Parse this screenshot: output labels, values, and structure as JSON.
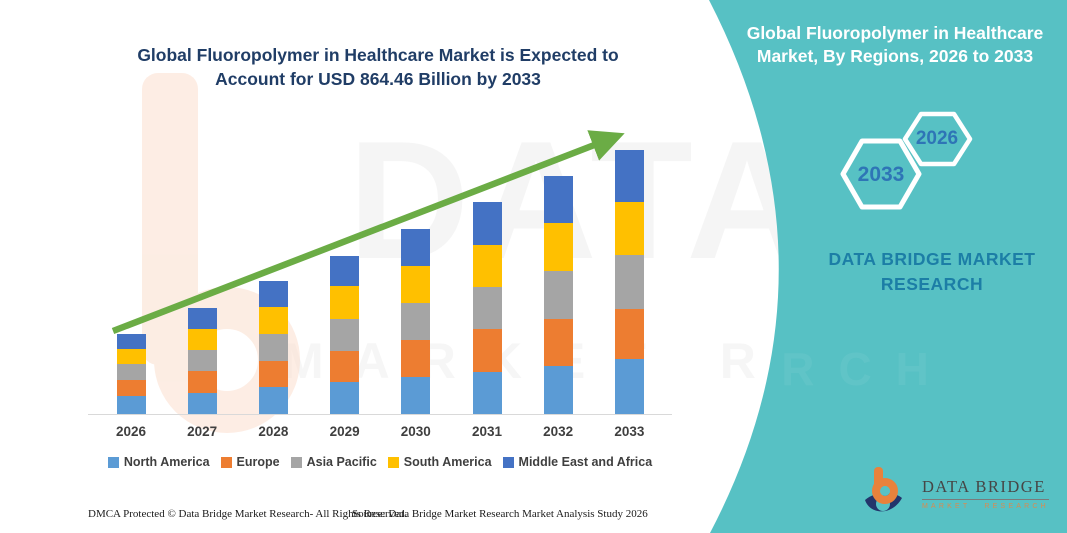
{
  "colors": {
    "teal_panel": "#57c1c4",
    "title_navy": "#203d66",
    "arrow_green": "#6bac45",
    "axis_line": "#d9d9d9",
    "label_gray": "#3f3f3f",
    "hex_year_blue": "#2e75b6",
    "brand_blue": "#1c7ea6",
    "logo_orange": "#e8823c",
    "logo_navy": "#23356b"
  },
  "left_panel": {
    "title_lines": [
      "Global Fluoropolymer in Healthcare Market is Expected to",
      "Account for USD 864.46 Billion by 2033"
    ]
  },
  "right_panel": {
    "title_lines": [
      "Global Fluoropolymer in Healthcare",
      "Market, By Regions, 2026 to 2033"
    ],
    "hexagons": {
      "large": "2033",
      "small": "2026"
    },
    "brand_text": "DATA BRIDGE MARKET RESEARCH"
  },
  "chart_data": {
    "type": "bar",
    "stacked": true,
    "title": "Global Fluoropolymer in Healthcare Market is Expected to Account for USD 864.46 Billion by 2033",
    "unit": "USD Billion",
    "categories": [
      "2026",
      "2027",
      "2028",
      "2029",
      "2030",
      "2031",
      "2032",
      "2033"
    ],
    "series": [
      {
        "name": "North America",
        "color": "#5b9bd5",
        "values": [
          58,
          70,
          88,
          106,
          122,
          139,
          156,
          181
        ]
      },
      {
        "name": "Europe",
        "color": "#ed7d31",
        "values": [
          52,
          70,
          87,
          99,
          121,
          139,
          156,
          164
        ]
      },
      {
        "name": "Asia Pacific",
        "color": "#a5a5a5",
        "values": [
          53,
          70,
          87,
          105,
          121,
          139,
          156,
          175
        ]
      },
      {
        "name": "South America",
        "color": "#ffc000",
        "values": [
          49,
          69,
          87,
          109,
          121,
          138,
          157,
          175
        ]
      },
      {
        "name": "Middle East and Africa",
        "color": "#4472c4",
        "values": [
          51,
          69,
          87,
          100,
          122,
          138,
          156,
          169
        ]
      }
    ],
    "totals": [
      263,
      348,
      436,
      519,
      607,
      693,
      781,
      864.46
    ],
    "highlight_value": "USD 864.46 Billion by 2033",
    "xlabel": "",
    "ylabel": "",
    "ylim": [
      0,
      900
    ],
    "grid": false,
    "legend_position": "bottom",
    "trend_arrow": true
  },
  "watermark": {
    "title": "DATA BRIDGE",
    "subtitle": "MARKET RESE",
    "teal_row": "ARCH"
  },
  "footer": {
    "dmca": "DMCA Protected © Data Bridge Market Research-  All Rights Reserved.",
    "source": "Source: Data Bridge Market Research  Market Analysis Study 2026"
  },
  "logo": {
    "name": "DATA BRIDGE",
    "subtitle": "MARKET RESEARCH"
  }
}
